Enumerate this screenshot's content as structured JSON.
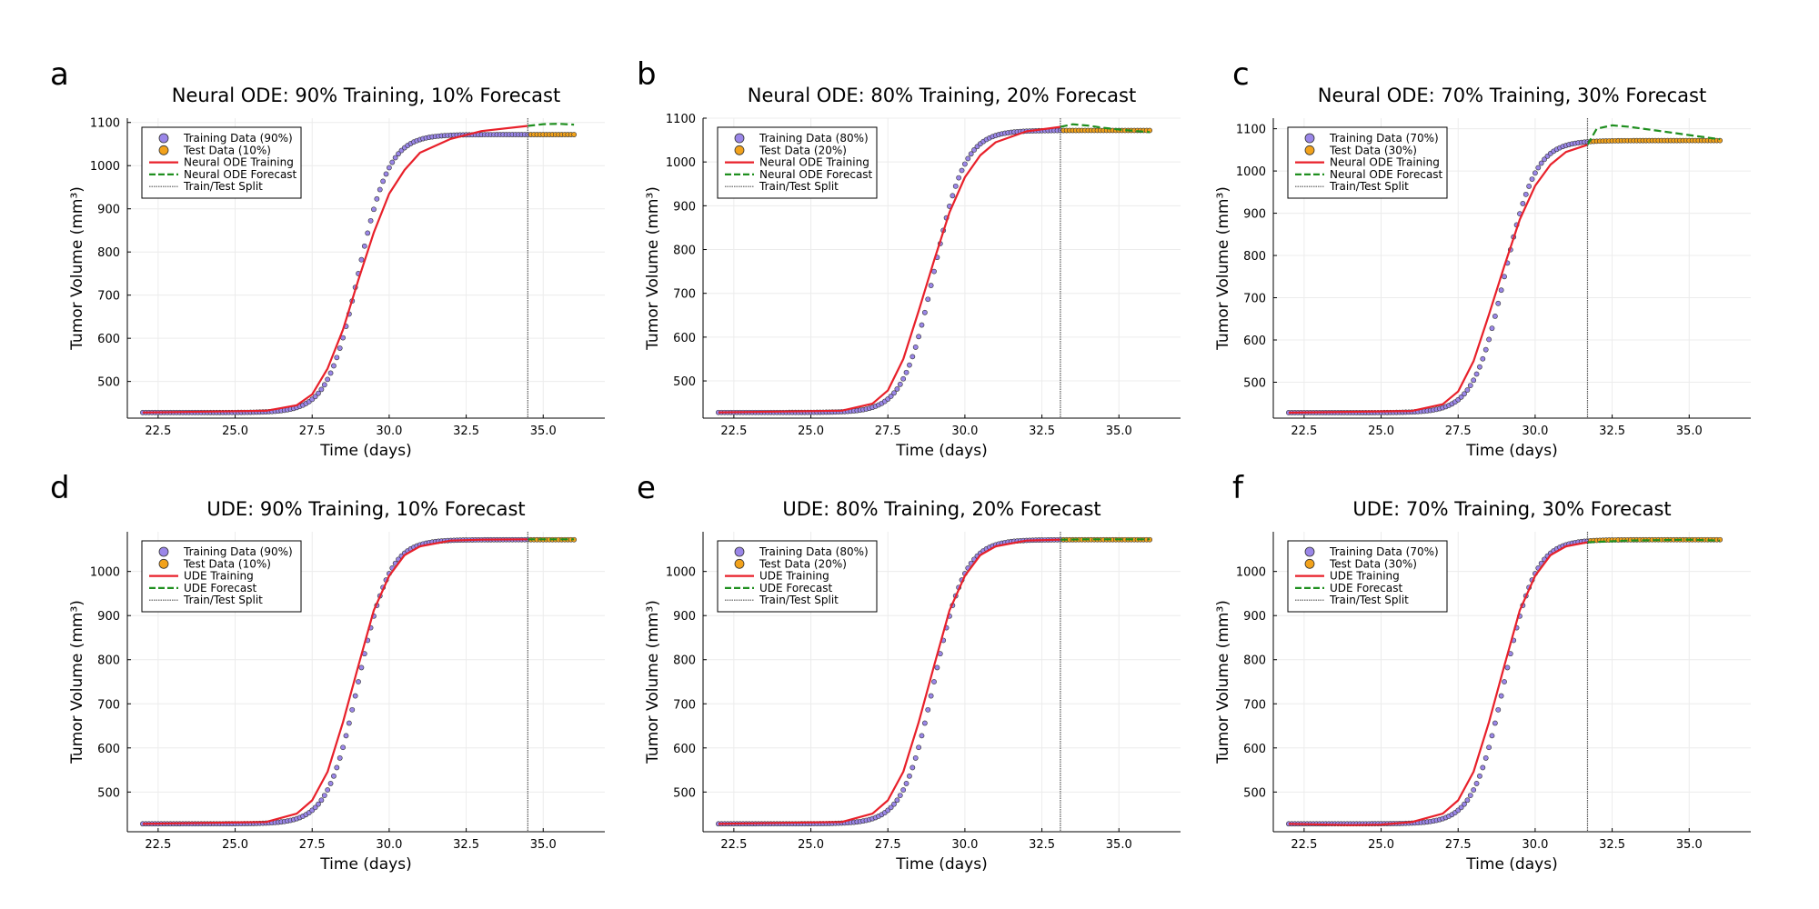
{
  "figure": {
    "panel_letters": [
      "a",
      "b",
      "c",
      "d",
      "e",
      "f"
    ]
  },
  "colors": {
    "training_marker": "#9a86e8",
    "test_marker": "#f2a21b",
    "marker_edge": "#333333",
    "training_line": "#e8202a",
    "forecast_line": "#1f8f1f",
    "split_line": "#555555",
    "grid": "#ececec"
  },
  "chart_data": [
    {
      "type": "scatter",
      "letter": "a",
      "title": "Neural ODE: 90% Training, 10% Forecast",
      "xlabel": "Time (days)",
      "ylabel": "Tumor Volume (mm³)",
      "xlim": [
        21.5,
        37.0
      ],
      "ylim": [
        415,
        1110
      ],
      "xticks": [
        "22.5",
        "25.0",
        "27.5",
        "30.0",
        "32.5",
        "35.0"
      ],
      "yticks": [
        "500",
        "600",
        "700",
        "800",
        "900",
        "1000",
        "1100"
      ],
      "grid": true,
      "legend_position": "top-left",
      "split_x": 34.5,
      "data_x_range": [
        22,
        36
      ],
      "data_logistic": {
        "base": 428,
        "plateau": 1072,
        "midpoint": 29.0,
        "rate": 2.0
      },
      "model_line": {
        "x": [
          22,
          26,
          27,
          27.5,
          28,
          28.5,
          29,
          29.5,
          30,
          30.5,
          31,
          32,
          33,
          34.5
        ],
        "y": [
          428,
          432,
          445,
          470,
          530,
          620,
          735,
          845,
          935,
          990,
          1030,
          1062,
          1080,
          1092
        ]
      },
      "forecast_line": {
        "x": [
          34.5,
          35,
          35.5,
          36
        ],
        "y": [
          1092,
          1096,
          1097,
          1095
        ]
      },
      "series": [
        {
          "name": "Training Data (90%)",
          "kind": "training_points"
        },
        {
          "name": "Test Data (10%)",
          "kind": "test_points"
        },
        {
          "name": "Neural ODE Training",
          "kind": "training_line"
        },
        {
          "name": "Neural ODE Forecast",
          "kind": "forecast_line"
        },
        {
          "name": "Train/Test Split",
          "kind": "split_line"
        }
      ]
    },
    {
      "type": "scatter",
      "letter": "b",
      "title": "Neural ODE: 80% Training, 20% Forecast",
      "xlabel": "Time (days)",
      "ylabel": "Tumor Volume (mm³)",
      "xlim": [
        21.5,
        37.0
      ],
      "ylim": [
        415,
        1100
      ],
      "xticks": [
        "22.5",
        "25.0",
        "27.5",
        "30.0",
        "32.5",
        "35.0"
      ],
      "yticks": [
        "500",
        "600",
        "700",
        "800",
        "900",
        "1000",
        "1100"
      ],
      "grid": true,
      "legend_position": "top-left",
      "split_x": 33.1,
      "data_x_range": [
        22,
        36
      ],
      "data_logistic": {
        "base": 428,
        "plateau": 1072,
        "midpoint": 29.0,
        "rate": 2.0
      },
      "model_line": {
        "x": [
          22,
          26,
          27,
          27.5,
          28,
          28.5,
          29,
          29.5,
          30,
          30.5,
          31,
          32,
          33.1
        ],
        "y": [
          428,
          432,
          448,
          478,
          550,
          660,
          775,
          885,
          965,
          1015,
          1045,
          1070,
          1080
        ]
      },
      "forecast_line": {
        "x": [
          33.1,
          33.5,
          34,
          34.5,
          35,
          35.5,
          36
        ],
        "y": [
          1080,
          1086,
          1083,
          1078,
          1074,
          1071,
          1068
        ]
      },
      "series": [
        {
          "name": "Training Data (80%)",
          "kind": "training_points"
        },
        {
          "name": "Test Data (20%)",
          "kind": "test_points"
        },
        {
          "name": "Neural ODE Training",
          "kind": "training_line"
        },
        {
          "name": "Neural ODE Forecast",
          "kind": "forecast_line"
        },
        {
          "name": "Train/Test Split",
          "kind": "split_line"
        }
      ]
    },
    {
      "type": "scatter",
      "letter": "c",
      "title": "Neural ODE: 70% Training, 30% Forecast",
      "xlabel": "Time (days)",
      "ylabel": "Tumor Volume (mm³)",
      "xlim": [
        21.5,
        37.0
      ],
      "ylim": [
        415,
        1125
      ],
      "xticks": [
        "22.5",
        "25.0",
        "27.5",
        "30.0",
        "32.5",
        "35.0"
      ],
      "yticks": [
        "500",
        "600",
        "700",
        "800",
        "900",
        "1000",
        "1100"
      ],
      "grid": true,
      "legend_position": "top-left",
      "split_x": 31.7,
      "data_x_range": [
        22,
        36
      ],
      "data_logistic": {
        "base": 428,
        "plateau": 1072,
        "midpoint": 29.0,
        "rate": 2.0
      },
      "model_line": {
        "x": [
          22,
          26,
          27,
          27.5,
          28,
          28.5,
          29,
          29.5,
          30,
          30.5,
          31,
          31.7
        ],
        "y": [
          428,
          432,
          448,
          478,
          550,
          660,
          775,
          885,
          965,
          1015,
          1045,
          1062
        ]
      },
      "forecast_line": {
        "x": [
          31.7,
          32,
          32.5,
          33,
          34,
          35,
          36
        ],
        "y": [
          1062,
          1100,
          1108,
          1105,
          1095,
          1085,
          1075
        ]
      },
      "series": [
        {
          "name": "Training Data (70%)",
          "kind": "training_points"
        },
        {
          "name": "Test Data (30%)",
          "kind": "test_points"
        },
        {
          "name": "Neural ODE Training",
          "kind": "training_line"
        },
        {
          "name": "Neural ODE Forecast",
          "kind": "forecast_line"
        },
        {
          "name": "Train/Test Split",
          "kind": "split_line"
        }
      ]
    },
    {
      "type": "scatter",
      "letter": "d",
      "title": "UDE: 90% Training, 10% Forecast",
      "xlabel": "Time (days)",
      "ylabel": "Tumor Volume (mm³)",
      "xlim": [
        21.5,
        37.0
      ],
      "ylim": [
        410,
        1090
      ],
      "xticks": [
        "22.5",
        "25.0",
        "27.5",
        "30.0",
        "32.5",
        "35.0"
      ],
      "yticks": [
        "500",
        "600",
        "700",
        "800",
        "900",
        "1000"
      ],
      "grid": true,
      "legend_position": "top-left",
      "split_x": 34.5,
      "data_x_range": [
        22,
        36
      ],
      "data_logistic": {
        "base": 428,
        "plateau": 1072,
        "midpoint": 29.0,
        "rate": 2.0
      },
      "model_line": {
        "x": [
          22,
          26,
          27,
          27.5,
          28,
          28.5,
          29,
          29.5,
          30,
          30.5,
          31,
          32,
          33,
          34.5
        ],
        "y": [
          428,
          432,
          451,
          481,
          546,
          658,
          786,
          912,
          990,
          1037,
          1057,
          1070,
          1072,
          1073
        ]
      },
      "forecast_line": {
        "x": [
          34.5,
          35,
          35.5,
          36
        ],
        "y": [
          1073,
          1073,
          1073,
          1073
        ]
      },
      "series": [
        {
          "name": "Training Data (90%)",
          "kind": "training_points"
        },
        {
          "name": "Test Data (10%)",
          "kind": "test_points"
        },
        {
          "name": "UDE Training",
          "kind": "training_line"
        },
        {
          "name": "UDE Forecast",
          "kind": "forecast_line"
        },
        {
          "name": "Train/Test Split",
          "kind": "split_line"
        }
      ]
    },
    {
      "type": "scatter",
      "letter": "e",
      "title": "UDE: 80% Training, 20% Forecast",
      "xlabel": "Time (days)",
      "ylabel": "Tumor Volume (mm³)",
      "xlim": [
        21.5,
        37.0
      ],
      "ylim": [
        410,
        1090
      ],
      "xticks": [
        "22.5",
        "25.0",
        "27.5",
        "30.0",
        "32.5",
        "35.0"
      ],
      "yticks": [
        "500",
        "600",
        "700",
        "800",
        "900",
        "1000"
      ],
      "grid": true,
      "legend_position": "top-left",
      "split_x": 33.1,
      "data_x_range": [
        22,
        36
      ],
      "data_logistic": {
        "base": 428,
        "plateau": 1072,
        "midpoint": 29.0,
        "rate": 2.0
      },
      "model_line": {
        "x": [
          22,
          26,
          27,
          27.5,
          28,
          28.5,
          29,
          29.5,
          30,
          30.5,
          31,
          32,
          33.1
        ],
        "y": [
          428,
          432,
          451,
          481,
          546,
          658,
          786,
          912,
          990,
          1037,
          1057,
          1070,
          1072
        ]
      },
      "forecast_line": {
        "x": [
          33.1,
          34,
          35,
          36
        ],
        "y": [
          1072,
          1073,
          1073,
          1073
        ]
      },
      "series": [
        {
          "name": "Training Data (80%)",
          "kind": "training_points"
        },
        {
          "name": "Test Data (20%)",
          "kind": "test_points"
        },
        {
          "name": "UDE Training",
          "kind": "training_line"
        },
        {
          "name": "UDE Forecast",
          "kind": "forecast_line"
        },
        {
          "name": "Train/Test Split",
          "kind": "split_line"
        }
      ]
    },
    {
      "type": "scatter",
      "letter": "f",
      "title": "UDE: 70% Training, 30% Forecast",
      "xlabel": "Time (days)",
      "ylabel": "Tumor Volume (mm³)",
      "xlim": [
        21.5,
        37.0
      ],
      "ylim": [
        410,
        1090
      ],
      "xticks": [
        "22.5",
        "25.0",
        "27.5",
        "30.0",
        "32.5",
        "35.0"
      ],
      "yticks": [
        "500",
        "600",
        "700",
        "800",
        "900",
        "1000"
      ],
      "grid": true,
      "legend_position": "top-left",
      "split_x": 31.7,
      "data_x_range": [
        22,
        36
      ],
      "data_logistic": {
        "base": 428,
        "plateau": 1072,
        "midpoint": 29.0,
        "rate": 2.0
      },
      "model_line": {
        "x": [
          22,
          24,
          25,
          26,
          27,
          27.5,
          28,
          28.5,
          29,
          29.5,
          30,
          30.5,
          31,
          31.7
        ],
        "y": [
          428,
          425,
          426,
          432,
          451,
          481,
          546,
          658,
          786,
          912,
          990,
          1037,
          1057,
          1066
        ]
      },
      "forecast_line": {
        "x": [
          31.7,
          33,
          34,
          35,
          36
        ],
        "y": [
          1066,
          1070,
          1071,
          1072,
          1070
        ]
      },
      "series": [
        {
          "name": "Training Data (70%)",
          "kind": "training_points"
        },
        {
          "name": "Test Data (30%)",
          "kind": "test_points"
        },
        {
          "name": "UDE Training",
          "kind": "training_line"
        },
        {
          "name": "UDE Forecast",
          "kind": "forecast_line"
        },
        {
          "name": "Train/Test Split",
          "kind": "split_line"
        }
      ]
    }
  ]
}
